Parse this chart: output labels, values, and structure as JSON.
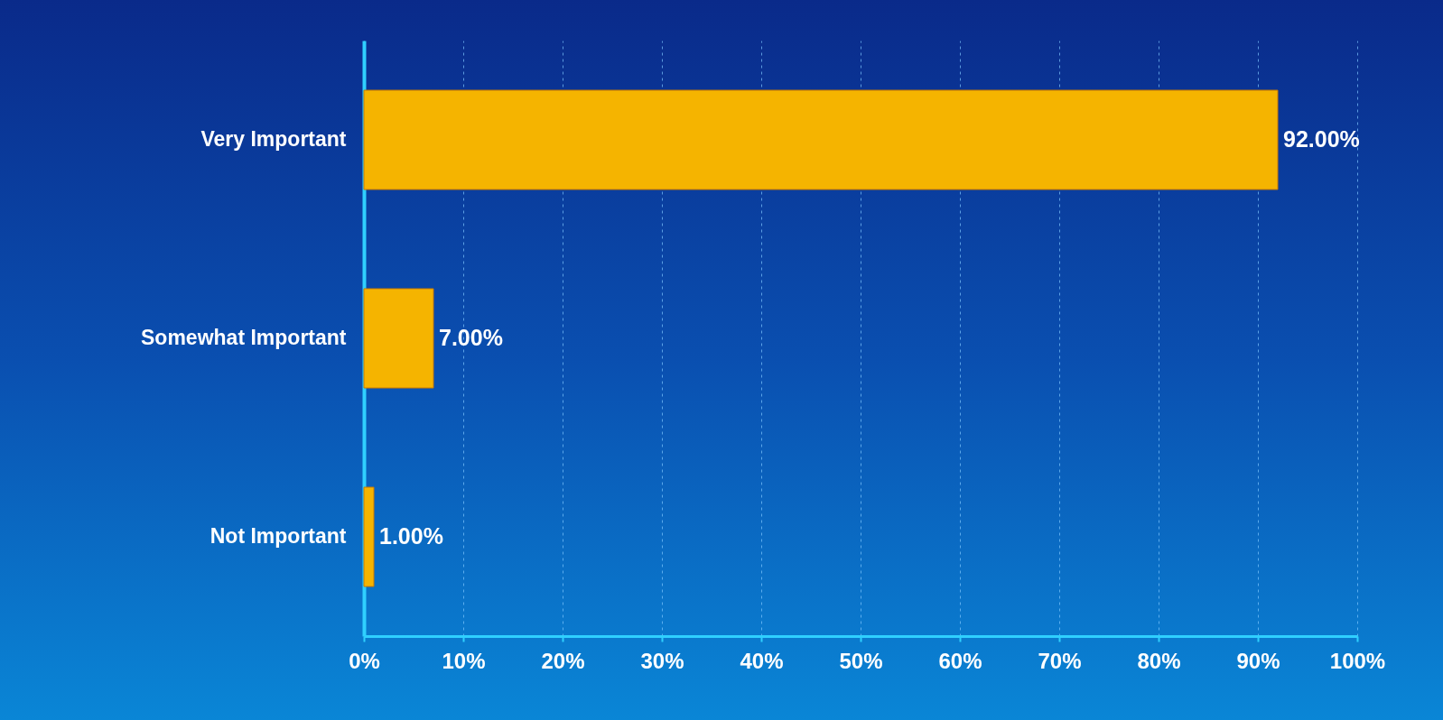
{
  "chart_data": {
    "type": "bar",
    "orientation": "horizontal",
    "categories": [
      "Very Important",
      "Somewhat Important",
      "Not Important"
    ],
    "values": [
      92,
      7,
      1
    ],
    "value_labels": [
      "92.00%",
      "7.00%",
      "1.00%"
    ],
    "color": "#f5b400",
    "xlim": [
      0,
      100
    ],
    "xticks": [
      {
        "value": 0,
        "label": "0%"
      },
      {
        "value": 10,
        "label": "10%"
      },
      {
        "value": 20,
        "label": "20%"
      },
      {
        "value": 30,
        "label": "30%"
      },
      {
        "value": 40,
        "label": "40%"
      },
      {
        "value": 50,
        "label": "50%"
      },
      {
        "value": 60,
        "label": "60%"
      },
      {
        "value": 70,
        "label": "70%"
      },
      {
        "value": 80,
        "label": "80%"
      },
      {
        "value": 90,
        "label": "90%"
      },
      {
        "value": 100,
        "label": "100%"
      }
    ],
    "grid": "x"
  }
}
